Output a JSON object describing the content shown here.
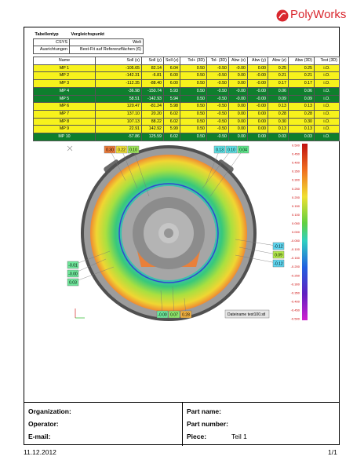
{
  "header": {
    "logo": "PolyWorks",
    "info": [
      [
        "Tabellentyp",
        "Vergleichspunkt"
      ],
      [
        "CSYS",
        "Welt"
      ],
      [
        "Ausrichtungen",
        "Best-Fit auf Referenzflächen (6)"
      ]
    ]
  },
  "table": {
    "columns": [
      "Name",
      "Soll (x)",
      "Soll (y)",
      "Soll (z)",
      "Tol+ (3D)",
      "Tol- (3D)",
      "Abw (x)",
      "Abw (y)",
      "Abw (z)",
      "Abw (3D)",
      "Test (3D)"
    ],
    "rows": [
      [
        "MP 1",
        "-105.65",
        "82.14",
        "6.04",
        "0.50",
        "-0.50",
        "-0.00",
        "0.00",
        "0.25",
        "0.25",
        "i.O."
      ],
      [
        "MP 2",
        "-142.31",
        "-6.81",
        "6.00",
        "0.50",
        "-0.50",
        "0.00",
        "-0.00",
        "0.21",
        "0.21",
        "i.O."
      ],
      [
        "MP 3",
        "-112.35",
        "-88.40",
        "6.00",
        "0.50",
        "-0.50",
        "0.00",
        "-0.00",
        "0.17",
        "0.17",
        "i.O."
      ],
      [
        "MP 4",
        "-36.98",
        "-150.74",
        "5.93",
        "0.50",
        "-0.50",
        "-0.00",
        "-0.00",
        "0.06",
        "0.06",
        "i.O."
      ],
      [
        "MP 5",
        "58.51",
        "-142.93",
        "5.94",
        "0.50",
        "-0.50",
        "-0.00",
        "-0.00",
        "0.09",
        "0.09",
        "i.O."
      ],
      [
        "MP 6",
        "120.47",
        "-81.24",
        "5.98",
        "0.50",
        "-0.50",
        "0.00",
        "-0.00",
        "0.13",
        "0.13",
        "i.O."
      ],
      [
        "MP 7",
        "137.10",
        "20.20",
        "6.02",
        "0.50",
        "-0.50",
        "0.00",
        "0.00",
        "0.28",
        "0.28",
        "i.O."
      ],
      [
        "MP 8",
        "107.13",
        "88.22",
        "6.02",
        "0.50",
        "-0.50",
        "0.00",
        "0.00",
        "0.30",
        "0.30",
        "i.O."
      ],
      [
        "MP 9",
        "22.91",
        "142.92",
        "5.99",
        "0.50",
        "-0.50",
        "0.00",
        "0.00",
        "0.13",
        "0.13",
        "i.O."
      ],
      [
        "MP 10",
        "-57.86",
        "125.59",
        "6.02",
        "0.50",
        "-0.50",
        "0.00",
        "0.00",
        "0.03",
        "0.03",
        "i.O."
      ]
    ],
    "row_colors": [
      "#f7f21c",
      "#f7f21c",
      "#f7f21c",
      "#0e7f2d",
      "#0e7f2d",
      "#f7f21c",
      "#f7f21c",
      "#f7f21c",
      "#f7f21c",
      "#0e7f2d"
    ]
  },
  "figure": {
    "callouts": [
      {
        "label": "0.30",
        "color": "#ec7a3a"
      },
      {
        "label": "0.22",
        "color": "#f2e03a"
      },
      {
        "label": "0.10",
        "color": "#9ee65a"
      },
      {
        "label": "0.13",
        "color": "#5fe0e6"
      },
      {
        "label": "0.10",
        "color": "#5fe0e6"
      },
      {
        "label": "0.04",
        "color": "#5ee68a"
      },
      {
        "label": "-0.12",
        "color": "#5fd6f0"
      },
      {
        "label": "0.09",
        "color": "#b4ea4a"
      },
      {
        "label": "-0.12",
        "color": "#5fd6f0"
      },
      {
        "label": "-0.01",
        "color": "#6ee69a"
      },
      {
        "label": "-0.00",
        "color": "#6ee69a"
      },
      {
        "label": "0.03",
        "color": "#6ee69a"
      },
      {
        "label": "-0.00",
        "color": "#6ee69a"
      },
      {
        "label": "0.07",
        "color": "#8ee66a"
      },
      {
        "label": "0.28",
        "color": "#f0b040"
      }
    ],
    "file_name": "Dateiname test100.stl",
    "scale_ticks": [
      "0.500",
      "0.450",
      "0.400",
      "0.350",
      "0.300",
      "0.250",
      "0.200",
      "0.150",
      "0.100",
      "0.050",
      "0.000",
      "-0.050",
      "-0.100",
      "-0.150",
      "-0.200",
      "-0.250",
      "-0.300",
      "-0.350",
      "-0.400",
      "-0.450",
      "-0.500"
    ]
  },
  "footer": {
    "left": [
      "Organization:",
      "Operator:",
      "E-mail:"
    ],
    "right": [
      {
        "label": "Part name:"
      },
      {
        "label": "Part number:"
      },
      {
        "label": "Piece:",
        "value": "Teil 1"
      }
    ]
  },
  "page": {
    "date": "11.12.2012",
    "number": "1/1"
  }
}
